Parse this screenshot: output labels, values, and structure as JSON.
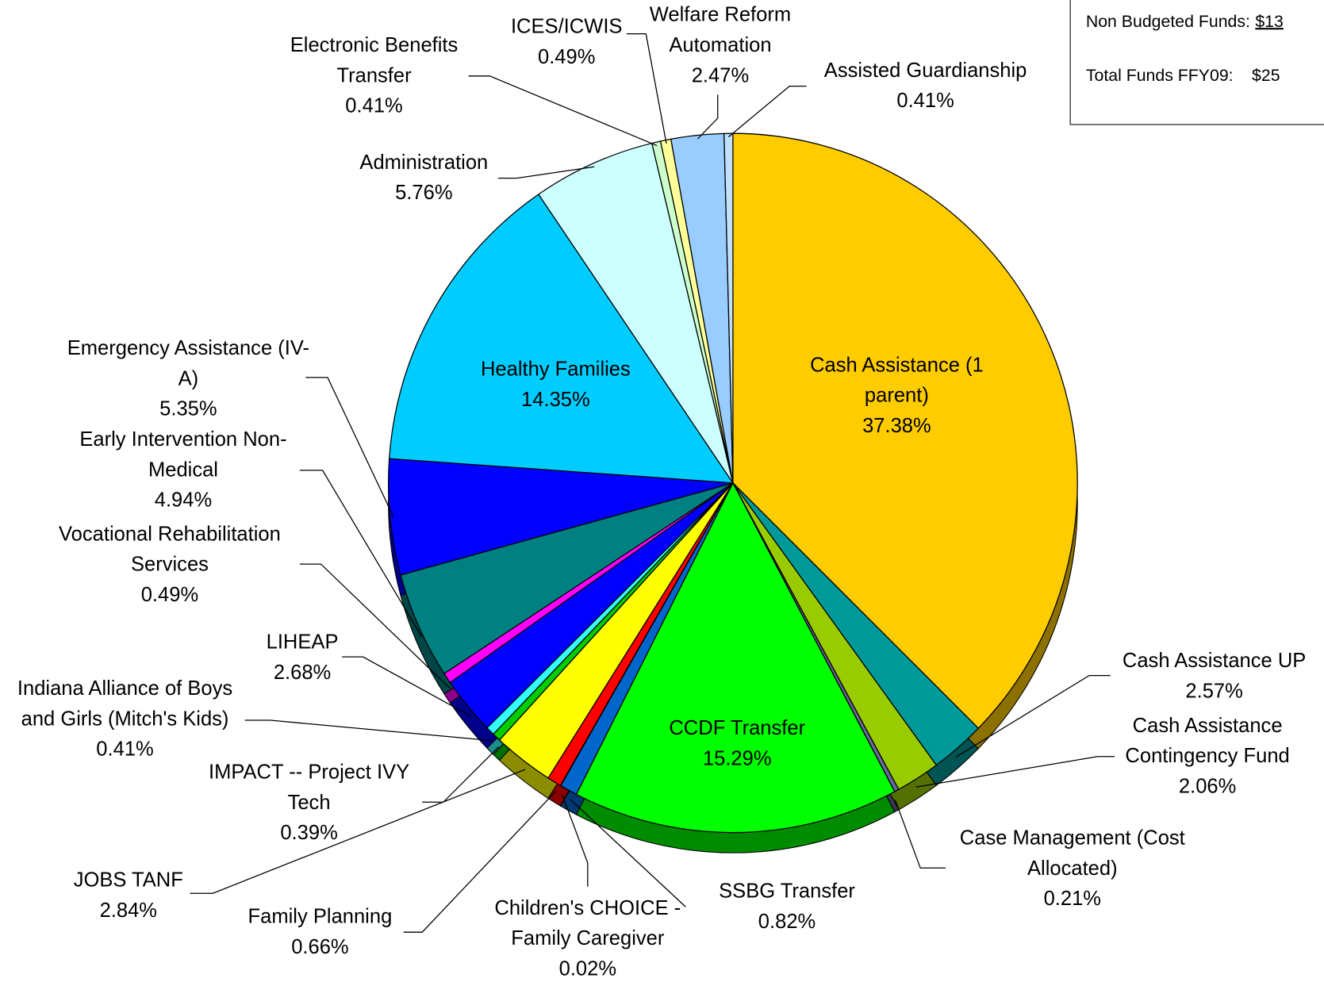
{
  "chart_data": {
    "type": "pie",
    "categories": [
      "Cash Assistance (1 parent)",
      "Cash Assistance UP",
      "Cash Assistance Contingency Fund",
      "Case Management (Cost Allocated)",
      "CCDF Transfer",
      "SSBG Transfer",
      "Children's CHOICE - Family Caregiver",
      "Family Planning",
      "JOBS TANF",
      "IMPACT -- Project IVY Tech",
      "Indiana Alliance of Boys and Girls (Mitch's Kids)",
      "LIHEAP",
      "Vocational Rehabilitation Services",
      "Early Intervention Non-Medical",
      "Emergency Assistance (IV-A)",
      "Healthy Families",
      "Administration",
      "Electronic Benefits Transfer",
      "ICES/ICWIS",
      "Welfare Reform Automation",
      "Assisted Guardianship"
    ],
    "values": [
      37.38,
      2.57,
      2.06,
      0.21,
      15.29,
      0.82,
      0.02,
      0.66,
      2.84,
      0.39,
      0.41,
      2.68,
      0.49,
      4.94,
      5.35,
      14.35,
      5.76,
      0.41,
      0.49,
      2.47,
      0.41
    ],
    "value_labels": [
      "37.38%",
      "2.57%",
      "2.06%",
      "0.21%",
      "15.29%",
      "0.82%",
      "0.02%",
      "0.66%",
      "2.84%",
      "0.39%",
      "0.41%",
      "2.68%",
      "0.49%",
      "4.94%",
      "5.35%",
      "14.35%",
      "5.76%",
      "0.41%",
      "0.49%",
      "2.47%",
      "0.41%"
    ],
    "colors": [
      "#ffcc00",
      "#009999",
      "#99cc00",
      "#666699",
      "#00ff00",
      "#0066cc",
      "#ccccff",
      "#ff0000",
      "#ffff00",
      "#00cc00",
      "#33ffff",
      "#0000ff",
      "#ff00ff",
      "#008080",
      "#0000ff",
      "#00ccff",
      "#ccffff",
      "#ccffcc",
      "#ffff99",
      "#99ccff",
      "#c0e0ff"
    ],
    "summary": [
      {
        "label": "Non Budgeted Funds:",
        "value": "$13"
      },
      {
        "label": "Total Funds FFY09:",
        "value": "$25"
      }
    ]
  }
}
